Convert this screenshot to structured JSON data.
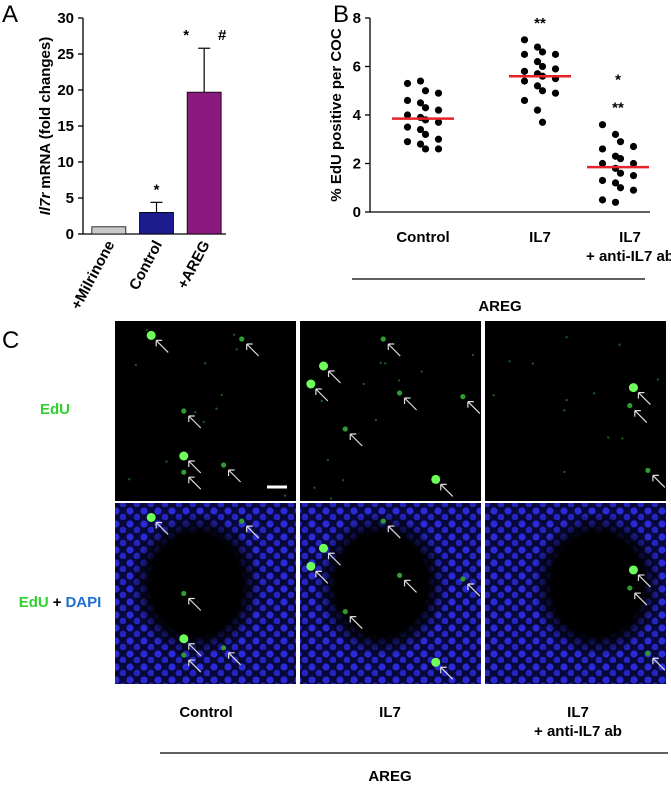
{
  "chart_data": [
    {
      "type": "bar",
      "panel_label": "A",
      "ylabel_italic": "Il7r",
      "ylabel": "mRNA (fold changes)",
      "categories": [
        "+Milrinone",
        "Control",
        "+AREG"
      ],
      "values": [
        1,
        3,
        19.7
      ],
      "errors": [
        null,
        1.4,
        6.1
      ],
      "colors": [
        "#c8c8c8",
        "#1c1c8f",
        "#8a1a7e"
      ],
      "ylim": [
        0,
        30
      ],
      "yticks": [
        0,
        5,
        10,
        15,
        20,
        25,
        30
      ],
      "annotations": [
        {
          "text": "*",
          "category": 1
        },
        {
          "text": "*",
          "category": 2
        },
        {
          "text": "#",
          "category": 2
        }
      ]
    },
    {
      "type": "dotplot",
      "panel_label": "B",
      "ylabel": "% EdU positive per COC",
      "categories": [
        "Control",
        "IL7",
        "IL7\n+ anti-IL7 ab"
      ],
      "groups": [
        {
          "values": [
            5.3,
            5.4,
            5.0,
            4.9,
            4.6,
            4.5,
            4.3,
            4.2,
            4.0,
            3.9,
            3.8,
            3.7,
            3.5,
            3.4,
            3.2,
            3.0,
            2.9,
            2.8,
            2.6,
            2.6
          ],
          "mean": 3.85
        },
        {
          "values": [
            7.1,
            6.8,
            6.6,
            6.5,
            6.5,
            6.2,
            6.0,
            5.9,
            5.8,
            5.7,
            5.6,
            5.5,
            5.4,
            5.2,
            5.0,
            4.9,
            4.6,
            4.2,
            3.7
          ],
          "mean": 5.6
        },
        {
          "values": [
            3.6,
            3.2,
            2.9,
            2.7,
            2.6,
            2.3,
            2.2,
            2.0,
            2.0,
            1.8,
            1.6,
            1.5,
            1.3,
            1.2,
            1.0,
            0.9,
            0.5,
            0.4
          ],
          "mean": 1.85
        }
      ],
      "dot_color": "#000000",
      "mean_color": "#e8222a",
      "ylim": [
        0,
        8
      ],
      "yticks": [
        0,
        2,
        4,
        6,
        8
      ],
      "annotations": [
        {
          "text": "**",
          "category": 1
        },
        {
          "text": "*",
          "category": 2
        },
        {
          "text": "**",
          "category": 2
        }
      ],
      "group_label": "AREG"
    }
  ],
  "panel_c": {
    "panel_label": "C",
    "row_labels": [
      [
        {
          "text": "EdU",
          "color": "#2fd12f"
        }
      ],
      [
        {
          "text": "EdU",
          "color": "#2fd12f"
        },
        {
          "text": "+",
          "color": "#000000"
        },
        {
          "text": "DAPI",
          "color": "#1f6fd1"
        }
      ]
    ],
    "column_labels": [
      "Control",
      "IL7",
      "IL7\n+ anti-IL7 ab"
    ],
    "group_label": "AREG"
  }
}
